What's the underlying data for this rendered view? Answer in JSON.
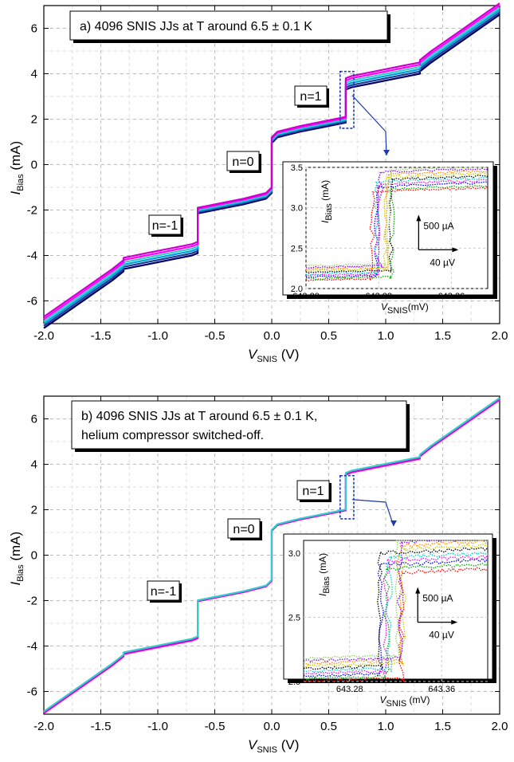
{
  "chart_data": [
    {
      "type": "line",
      "panel": "a",
      "title_lines": [
        "a) 4096 SNIS JJs at T around 6.5 ± 0.1 K"
      ],
      "xlabel": {
        "main": "V",
        "sub": "SNIS",
        "unit": " (V)"
      },
      "ylabel": {
        "main": "I",
        "sub": "Bias",
        "unit": " (mA)"
      },
      "xlim": [
        -2.0,
        2.0
      ],
      "ylim": [
        -7,
        7
      ],
      "xticks": [
        "-2.0",
        "-1.5",
        "-1.0",
        "-0.5",
        "0.0",
        "0.5",
        "1.0",
        "1.5",
        "2.0"
      ],
      "yticks": [
        "-6",
        "-4",
        "-2",
        "0",
        "2",
        "4",
        "6"
      ],
      "grid": true,
      "step_labels": [
        "n=-1",
        "n=0",
        "n=1"
      ],
      "series_colors": [
        "#000066",
        "#1f3a93",
        "#00a0e0",
        "#33cccc",
        "#ff00ff",
        "#cc00cc"
      ],
      "x": [
        -2.0,
        -1.8,
        -1.6,
        -1.4,
        -1.3,
        -1.3,
        -1.1,
        -0.9,
        -0.7,
        -0.65,
        -0.65,
        -0.45,
        -0.25,
        -0.05,
        0.0,
        0.0,
        0.05,
        0.25,
        0.45,
        0.65,
        0.65,
        0.7,
        0.9,
        1.1,
        1.3,
        1.3,
        1.4,
        1.6,
        1.8,
        2.0
      ],
      "y": [
        -6.9,
        -6.2,
        -5.5,
        -4.8,
        -4.4,
        -4.3,
        -4.1,
        -3.9,
        -3.7,
        -3.6,
        -2.0,
        -1.8,
        -1.6,
        -1.35,
        -1.1,
        1.1,
        1.35,
        1.6,
        1.8,
        2.0,
        3.6,
        3.7,
        3.9,
        4.1,
        4.3,
        4.4,
        4.8,
        5.5,
        6.2,
        6.9
      ],
      "inset": {
        "xlabel": {
          "main": "V",
          "sub": "SNIS",
          "unit": "(mV)"
        },
        "ylabel": {
          "main": "I",
          "sub": "Bias",
          "unit": " (mA)"
        },
        "xlim": [
          643.2,
          643.4
        ],
        "ylim": [
          2.0,
          3.5
        ],
        "xticks": [
          "643.20",
          "643.28",
          "643.36"
        ],
        "yticks": [
          "2.0",
          "2.5",
          "3.0",
          "3.5"
        ],
        "scale_current": "500 µA",
        "scale_voltage": "40 µV"
      }
    },
    {
      "type": "line",
      "panel": "b",
      "title_lines": [
        "b) 4096 SNIS JJs at T around 6.5 ± 0.1 K,",
        "helium compressor switched-off."
      ],
      "xlabel": {
        "main": "V",
        "sub": "SNIS",
        "unit": " (V)"
      },
      "ylabel": {
        "main": "I",
        "sub": "Bias",
        "unit": " (mA)"
      },
      "xlim": [
        -2.0,
        2.0
      ],
      "ylim": [
        -7,
        7
      ],
      "xticks": [
        "-2.0",
        "-1.5",
        "-1.0",
        "-0.5",
        "0.0",
        "0.5",
        "1.0",
        "1.5",
        "2.0"
      ],
      "yticks": [
        "-6",
        "-4",
        "-2",
        "0",
        "2",
        "4",
        "6"
      ],
      "grid": true,
      "step_labels": [
        "n=-1",
        "n=0",
        "n=1"
      ],
      "series_colors": [
        "#ff00ff",
        "#cc00cc",
        "#33cccc"
      ],
      "x": [
        -2.0,
        -1.8,
        -1.6,
        -1.4,
        -1.3,
        -1.3,
        -1.1,
        -0.9,
        -0.7,
        -0.65,
        -0.65,
        -0.45,
        -0.25,
        -0.05,
        0.0,
        0.0,
        0.05,
        0.25,
        0.45,
        0.65,
        0.65,
        0.7,
        0.9,
        1.1,
        1.3,
        1.3,
        1.4,
        1.6,
        1.8,
        2.0
      ],
      "y": [
        -6.9,
        -6.2,
        -5.5,
        -4.8,
        -4.4,
        -4.3,
        -4.1,
        -3.9,
        -3.7,
        -3.6,
        -2.0,
        -1.8,
        -1.6,
        -1.35,
        -1.1,
        1.1,
        1.35,
        1.6,
        1.8,
        2.0,
        3.6,
        3.7,
        3.9,
        4.1,
        4.3,
        4.4,
        4.8,
        5.5,
        6.2,
        6.9
      ],
      "inset": {
        "xlabel": {
          "main": "V",
          "sub": "SNIS",
          "unit": " (mV)"
        },
        "ylabel": {
          "main": "I",
          "sub": "Bias",
          "unit": " (mA)"
        },
        "xlim": [
          643.24,
          643.4
        ],
        "ylim": [
          2.0,
          3.1
        ],
        "xticks": [
          "643.28",
          "643.36"
        ],
        "yticks": [
          "2.0",
          "2.5",
          "3.0"
        ],
        "scale_current": "500 µA",
        "scale_voltage": "40 µV"
      }
    }
  ]
}
